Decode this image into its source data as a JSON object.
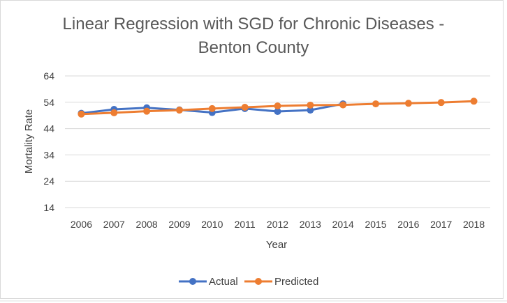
{
  "chart_data": {
    "type": "line",
    "title_line1": "Linear Regression with SGD for Chronic Diseases -",
    "title_line2": "Benton County",
    "xlabel": "Year",
    "ylabel": "Mortality Rate",
    "categories": [
      "2006",
      "2007",
      "2008",
      "2009",
      "2010",
      "2011",
      "2012",
      "2013",
      "2014",
      "2015",
      "2016",
      "2017",
      "2018"
    ],
    "yticks": [
      14,
      24,
      34,
      44,
      54,
      64
    ],
    "ylim": [
      14,
      64
    ],
    "grid": true,
    "legend_position": "bottom",
    "series": [
      {
        "name": "Actual",
        "color": "#4472C4",
        "values": [
          49.8,
          51.3,
          51.9,
          51.1,
          50.1,
          51.6,
          50.5,
          51.0,
          53.4,
          null,
          null,
          null,
          null
        ]
      },
      {
        "name": "Predicted",
        "color": "#ED7D31",
        "values": [
          49.5,
          50.0,
          50.6,
          51.0,
          51.6,
          52.1,
          52.6,
          52.9,
          53.0,
          53.4,
          53.6,
          53.9,
          54.4
        ]
      }
    ]
  }
}
